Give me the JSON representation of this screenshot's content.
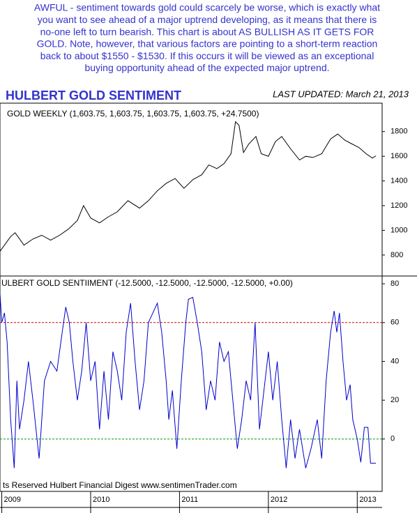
{
  "annotation": [
    "AWFUL - sentiment towards gold could scarcely be worse, which is exactly what",
    "you want to see ahead of a major uptrend developing, as it means that there is",
    "no-one left to turn bearish. This chart is about AS BULLISH AS IT GETS FOR",
    "GOLD. Note, however, that various factors are pointing to a short-term reaction",
    "back to about $1550 - $1530. If this occurs it will be viewed as an exceptional",
    "buying opportunity ahead of the expected major uptrend."
  ],
  "header": {
    "title": "HULBERT GOLD SENTIMENT",
    "updated": "LAST UPDATED:  March 21, 2013"
  },
  "footer": "ts Reserved  Hulbert Financial Digest  www.sentimenTrader.com",
  "chart_data": [
    {
      "type": "line",
      "x": [
        2008.98,
        2009.05,
        2009.1,
        2009.15,
        2009.25,
        2009.35,
        2009.45,
        2009.55,
        2009.65,
        2009.75,
        2009.85,
        2009.92,
        2010.0,
        2010.1,
        2010.2,
        2010.3,
        2010.42,
        2010.55,
        2010.65,
        2010.75,
        2010.85,
        2010.95,
        2011.05,
        2011.15,
        2011.25,
        2011.33,
        2011.42,
        2011.5,
        2011.58,
        2011.63,
        2011.67,
        2011.72,
        2011.78,
        2011.86,
        2011.92,
        2012.0,
        2012.08,
        2012.15,
        2012.25,
        2012.35,
        2012.42,
        2012.5,
        2012.6,
        2012.7,
        2012.78,
        2012.86,
        2012.94,
        2013.02,
        2013.1,
        2013.17,
        2013.21
      ],
      "series": [
        {
          "name": "GOLD WEEKLY (1,603.75, 1,603.75, 1,603.75, 1,603.75, +24.7500)",
          "color": "#000000",
          "values": [
            830,
            900,
            950,
            980,
            880,
            930,
            960,
            920,
            960,
            1010,
            1080,
            1200,
            1100,
            1060,
            1110,
            1150,
            1240,
            1180,
            1240,
            1320,
            1380,
            1420,
            1340,
            1410,
            1450,
            1530,
            1500,
            1540,
            1620,
            1880,
            1850,
            1630,
            1700,
            1760,
            1620,
            1600,
            1720,
            1760,
            1660,
            1570,
            1600,
            1590,
            1620,
            1740,
            1780,
            1730,
            1700,
            1670,
            1620,
            1585,
            1604
          ]
        }
      ],
      "xlim": [
        2008.98,
        2013.28
      ],
      "ylim": [
        630,
        2030
      ],
      "yticks": [
        800,
        1000,
        1200,
        1400,
        1600,
        1800
      ]
    },
    {
      "type": "line",
      "x": [
        2008.98,
        2009.0,
        2009.03,
        2009.06,
        2009.1,
        2009.14,
        2009.17,
        2009.2,
        2009.25,
        2009.3,
        2009.35,
        2009.42,
        2009.48,
        2009.55,
        2009.62,
        2009.68,
        2009.72,
        2009.76,
        2009.8,
        2009.85,
        2009.9,
        2009.95,
        2010.0,
        2010.05,
        2010.1,
        2010.15,
        2010.2,
        2010.25,
        2010.3,
        2010.35,
        2010.4,
        2010.45,
        2010.5,
        2010.55,
        2010.6,
        2010.65,
        2010.7,
        2010.75,
        2010.8,
        2010.85,
        2010.88,
        2010.92,
        2010.97,
        2011.02,
        2011.07,
        2011.1,
        2011.15,
        2011.2,
        2011.25,
        2011.3,
        2011.35,
        2011.4,
        2011.45,
        2011.5,
        2011.55,
        2011.6,
        2011.65,
        2011.7,
        2011.75,
        2011.8,
        2011.85,
        2011.9,
        2011.95,
        2012.0,
        2012.05,
        2012.1,
        2012.15,
        2012.2,
        2012.25,
        2012.3,
        2012.35,
        2012.42,
        2012.48,
        2012.55,
        2012.6,
        2012.65,
        2012.7,
        2012.74,
        2012.77,
        2012.8,
        2012.84,
        2012.88,
        2012.92,
        2012.95,
        2013.0,
        2013.04,
        2013.08,
        2013.12,
        2013.15,
        2013.21
      ],
      "series": [
        {
          "name": "ULBERT GOLD SENTIIMENT (-12.5000, -12.5000, -12.5000, -12.5000, +0.00)",
          "color": "#0000cc",
          "values": [
            75,
            60,
            65,
            50,
            10,
            -15,
            30,
            5,
            20,
            40,
            20,
            -10,
            30,
            40,
            35,
            55,
            68,
            60,
            40,
            20,
            35,
            60,
            30,
            40,
            5,
            35,
            10,
            45,
            35,
            20,
            55,
            70,
            40,
            15,
            30,
            60,
            65,
            70,
            55,
            30,
            10,
            25,
            -5,
            30,
            60,
            72,
            73,
            60,
            45,
            15,
            30,
            20,
            50,
            40,
            45,
            20,
            -5,
            10,
            30,
            20,
            60,
            5,
            25,
            45,
            20,
            40,
            10,
            -15,
            10,
            -10,
            5,
            -15,
            -5,
            10,
            -10,
            30,
            55,
            66,
            55,
            65,
            40,
            20,
            28,
            10,
            0,
            -12,
            6,
            6,
            -12.5,
            -12.5
          ]
        }
      ],
      "xlim": [
        2008.98,
        2013.28
      ],
      "xticks": [
        2009,
        2010,
        2011,
        2012,
        2013
      ],
      "ylim": [
        -27,
        84
      ],
      "yticks": [
        0,
        20,
        40,
        60,
        80
      ],
      "reference_lines": [
        {
          "value": 60,
          "color": "#cc0000"
        },
        {
          "value": 0,
          "color": "#009900"
        }
      ]
    }
  ]
}
